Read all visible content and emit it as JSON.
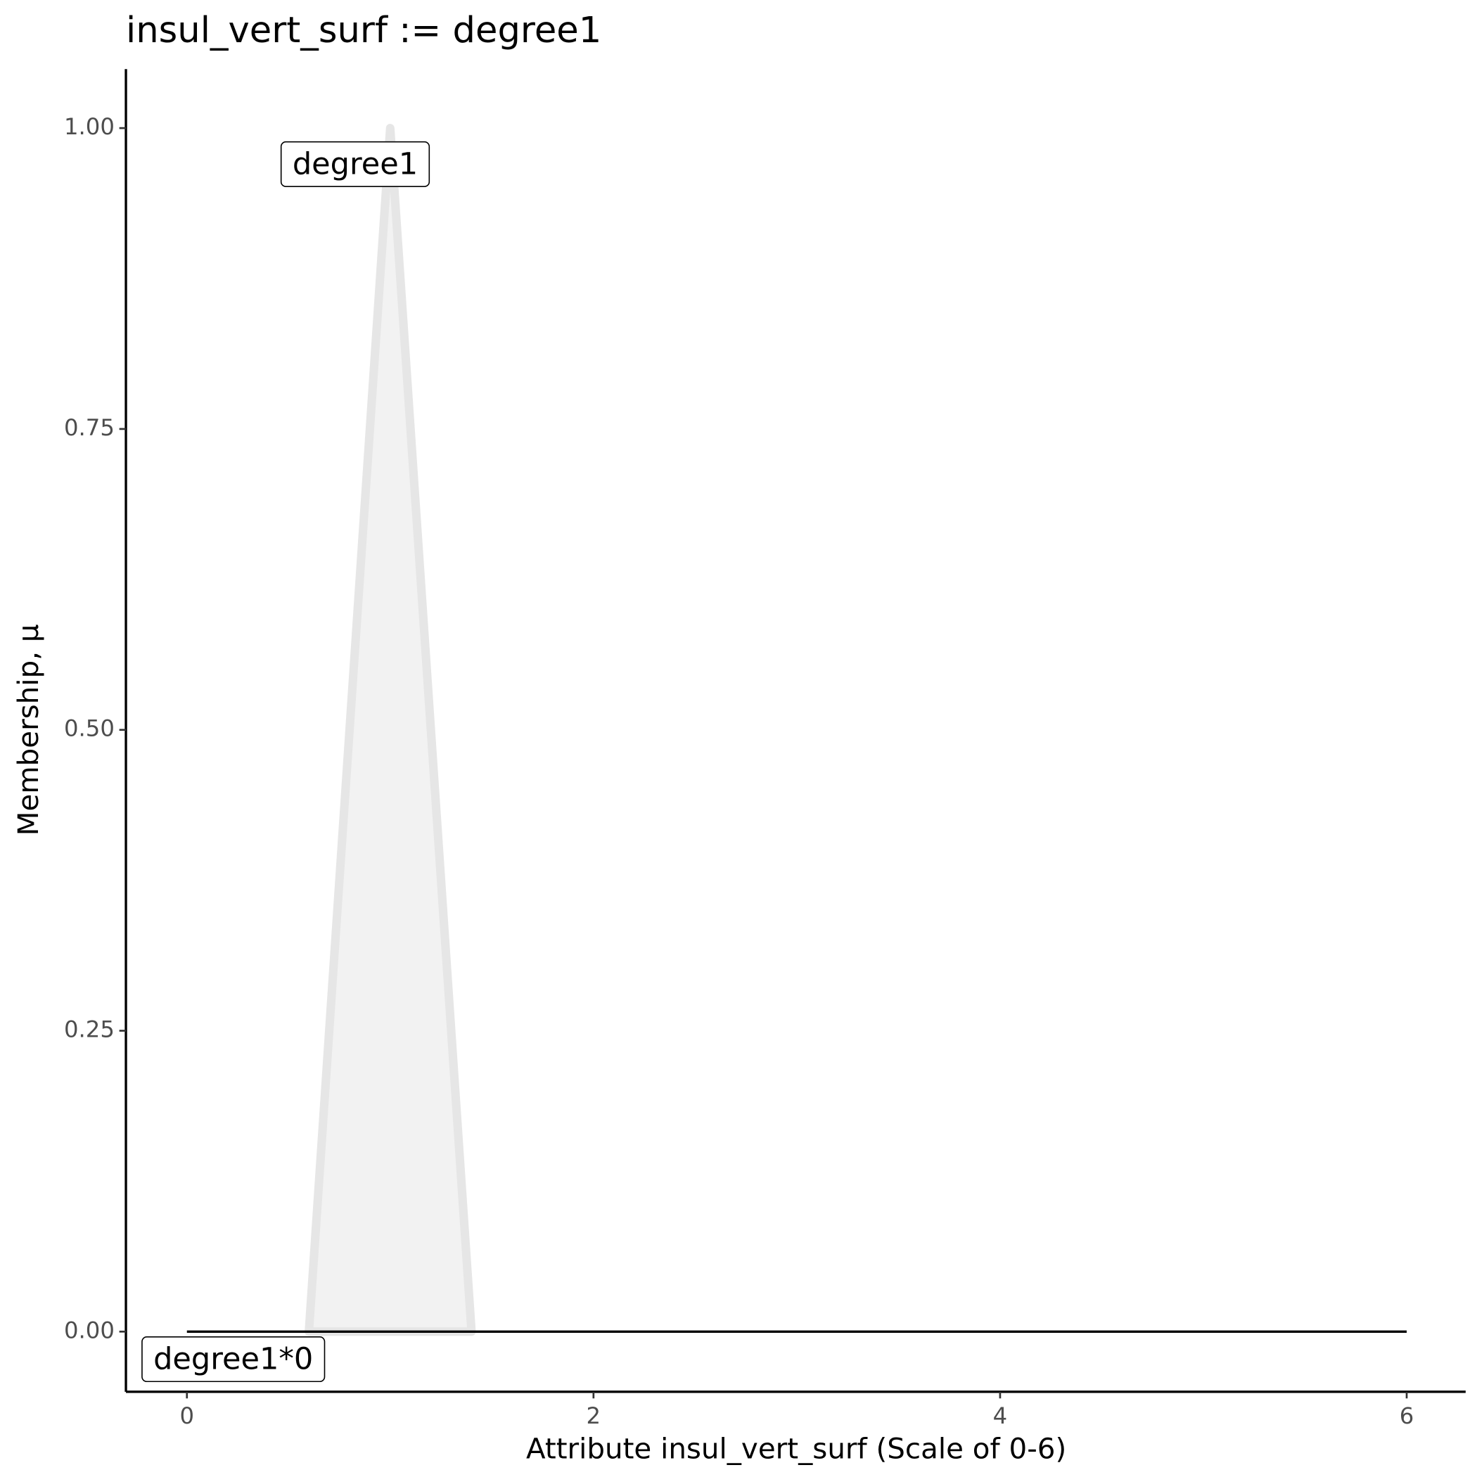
{
  "chart_data": {
    "type": "area",
    "title": "insul_vert_surf := degree1",
    "x_label": "Attribute insul_vert_surf (Scale of 0-6)",
    "y_label": "Membership, μ",
    "xlim": [
      -0.3,
      6.29
    ],
    "ylim": [
      -0.05,
      1.049
    ],
    "xticks": [
      0,
      2,
      4,
      6
    ],
    "yticks": [
      {
        "value": 0,
        "label": "0.00"
      },
      {
        "value": 0.25,
        "label": "0.25"
      },
      {
        "value": 0.5,
        "label": "0.50"
      },
      {
        "value": 0.75,
        "label": "0.75"
      },
      {
        "value": 1,
        "label": "1.00"
      }
    ],
    "grid": false,
    "series": [
      {
        "name": "degree1",
        "color": "#e6e6e6",
        "fill": "#f2f2f2",
        "x": [
          0.6,
          1,
          1.4
        ],
        "values": [
          0,
          1,
          0
        ]
      },
      {
        "name": "degree1*0",
        "color": "#000000",
        "x": [
          0,
          6
        ],
        "values": [
          0,
          0
        ]
      }
    ]
  }
}
